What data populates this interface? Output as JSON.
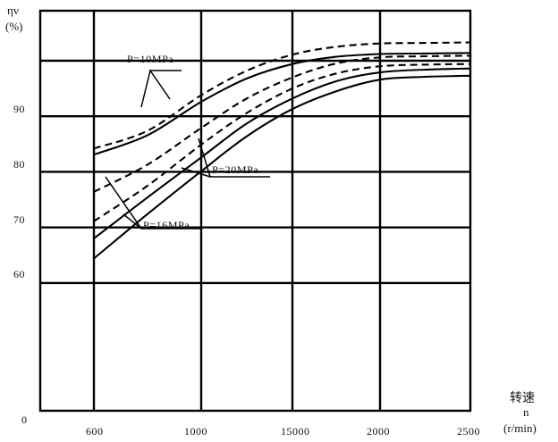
{
  "chart_data": {
    "type": "line",
    "ylabel_symbol": "ηv",
    "ylabel_unit": "(%)",
    "xlabel_text": "转速",
    "xlabel_symbol": "n",
    "xlabel_unit": "(r/min)",
    "origin_label": "0",
    "x_ticks": [
      "600",
      "1000",
      "15000",
      "2000",
      "2500"
    ],
    "y_ticks": [
      "60",
      "70",
      "80",
      "90"
    ],
    "y_gridlines": [
      60,
      70,
      80,
      90,
      100
    ],
    "x_axis_note": "x axis is categorical/uniformly spaced at the printed tick labels",
    "ylim": [
      37,
      109
    ],
    "grid": true,
    "annotations": [
      "P=10MPa",
      "P=16MPa",
      "P=20MPa"
    ],
    "curves": [
      {
        "group": "P=10MPa",
        "style": "dashed",
        "points": [
          [
            0,
            84.2
          ],
          [
            0.5,
            87.4
          ],
          [
            1,
            93.8
          ],
          [
            1.5,
            98.2
          ],
          [
            2,
            101.1
          ],
          [
            2.5,
            102.5
          ],
          [
            3,
            103.1
          ],
          [
            3.5,
            103.2
          ],
          [
            4,
            103.3
          ]
        ]
      },
      {
        "group": "P=10MPa",
        "style": "solid",
        "points": [
          [
            0,
            83.1
          ],
          [
            0.5,
            86.6
          ],
          [
            1,
            92.6
          ],
          [
            1.5,
            96.8
          ],
          [
            2,
            99.4
          ],
          [
            2.5,
            100.7
          ],
          [
            3,
            101.2
          ],
          [
            3.5,
            101.3
          ],
          [
            4,
            101.4
          ]
        ]
      },
      {
        "group": "P=16MPa",
        "style": "dashed",
        "points": [
          [
            0,
            76.4
          ],
          [
            0.5,
            81.3
          ],
          [
            1,
            87.9
          ],
          [
            1.5,
            93.2
          ],
          [
            2,
            97.0
          ],
          [
            2.5,
            99.5
          ],
          [
            3,
            100.6
          ],
          [
            3.5,
            100.8
          ],
          [
            4,
            100.9
          ]
        ]
      },
      {
        "group": "P=16MPa",
        "style": "dashed",
        "points": [
          [
            0,
            71.1
          ],
          [
            0.5,
            77.5
          ],
          [
            1,
            84.9
          ],
          [
            1.5,
            90.6
          ],
          [
            2,
            95.0
          ],
          [
            2.5,
            97.7
          ],
          [
            3,
            99.0
          ],
          [
            3.5,
            99.3
          ],
          [
            4,
            99.4
          ]
        ]
      },
      {
        "group": "P=20MPa",
        "style": "solid",
        "points": [
          [
            0,
            68.0
          ],
          [
            0.5,
            75.4
          ],
          [
            1,
            82.6
          ],
          [
            1.5,
            88.7
          ],
          [
            2,
            93.2
          ],
          [
            2.5,
            96.3
          ],
          [
            3,
            97.9
          ],
          [
            3.5,
            98.4
          ],
          [
            4,
            98.6
          ]
        ]
      },
      {
        "group": "P=20MPa",
        "style": "solid",
        "points": [
          [
            0,
            64.4
          ],
          [
            0.5,
            72.4
          ],
          [
            1,
            80.1
          ],
          [
            1.5,
            86.4
          ],
          [
            2,
            91.3
          ],
          [
            2.5,
            94.5
          ],
          [
            3,
            96.6
          ],
          [
            3.5,
            97.1
          ],
          [
            4,
            97.3
          ]
        ]
      }
    ]
  }
}
